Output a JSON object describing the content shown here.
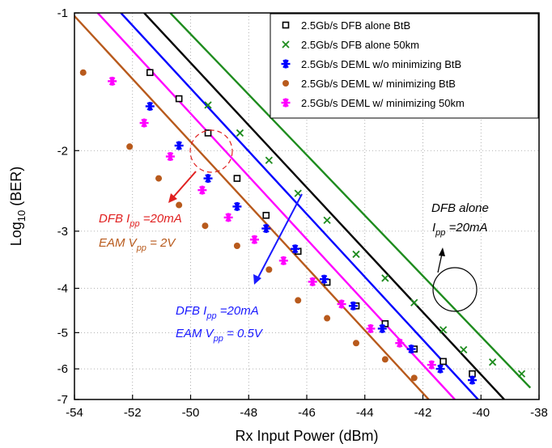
{
  "chart_data": {
    "type": "scatter",
    "xlabel": "Rx Input Power (dBm)",
    "ylabel_main": "Log",
    "ylabel_sub": "10",
    "ylabel_rest": " (BER)",
    "xlim": [
      -54,
      -38
    ],
    "ylim": [
      -7,
      -1
    ],
    "x_ticks": [
      -54,
      -52,
      -50,
      -48,
      -46,
      -44,
      -42,
      -40,
      -38
    ],
    "y_ticks": [
      -1,
      -2,
      -3,
      -4,
      -5,
      -6,
      -7
    ],
    "y_scale": "log-of-log (BER)",
    "grid": true,
    "legend_position": "top-right",
    "series": [
      {
        "name": "2.5Gb/s DFB alone BtB",
        "marker": "open-square",
        "color": "#000000",
        "points": [
          [
            -51.4,
            -1.35
          ],
          [
            -50.4,
            -1.54
          ],
          [
            -49.4,
            -1.83
          ],
          [
            -48.4,
            -2.3
          ],
          [
            -47.4,
            -2.77
          ],
          [
            -46.3,
            -3.32
          ],
          [
            -45.3,
            -3.88
          ],
          [
            -44.3,
            -4.37
          ],
          [
            -43.3,
            -4.78
          ],
          [
            -42.3,
            -5.43
          ],
          [
            -41.3,
            -5.78
          ],
          [
            -40.3,
            -6.15
          ]
        ],
        "fit": [
          [
            -51.6,
            -1.0
          ],
          [
            -39.2,
            -7.0
          ]
        ]
      },
      {
        "name": "2.5Gb/s DFB alone 50km",
        "marker": "x",
        "color": "#1e8c1e",
        "points": [
          [
            -49.4,
            -1.59
          ],
          [
            -48.3,
            -1.83
          ],
          [
            -47.3,
            -2.1
          ],
          [
            -46.3,
            -2.48
          ],
          [
            -45.3,
            -2.84
          ],
          [
            -44.3,
            -3.37
          ],
          [
            -43.3,
            -3.8
          ],
          [
            -42.3,
            -4.3
          ],
          [
            -41.3,
            -4.93
          ],
          [
            -40.6,
            -5.45
          ],
          [
            -39.6,
            -5.8
          ],
          [
            -38.6,
            -6.15
          ]
        ],
        "fit": [
          [
            -50.7,
            -1.0
          ],
          [
            -38.3,
            -6.6
          ]
        ]
      },
      {
        "name": "2.5Gb/s DEML w/o minimizing BtB",
        "marker": "asterisk",
        "color": "#0000ff",
        "points": [
          [
            -51.4,
            -1.6
          ],
          [
            -50.4,
            -1.95
          ],
          [
            -49.4,
            -2.3
          ],
          [
            -48.4,
            -2.65
          ],
          [
            -47.4,
            -2.96
          ],
          [
            -46.4,
            -3.28
          ],
          [
            -45.4,
            -3.82
          ],
          [
            -44.4,
            -4.37
          ],
          [
            -43.4,
            -4.9
          ],
          [
            -42.4,
            -5.43
          ],
          [
            -41.4,
            -6.0
          ],
          [
            -40.3,
            -6.35
          ]
        ],
        "fit": [
          [
            -52.4,
            -1.0
          ],
          [
            -40.1,
            -7.0
          ]
        ]
      },
      {
        "name": "2.5Gb/s DEML w/ minimizing BtB",
        "marker": "filled-circle",
        "color": "#b85a1c",
        "points": [
          [
            -53.7,
            -1.35
          ],
          [
            -52.1,
            -1.96
          ],
          [
            -51.1,
            -2.3
          ],
          [
            -50.4,
            -2.63
          ],
          [
            -49.5,
            -2.92
          ],
          [
            -48.4,
            -3.23
          ],
          [
            -47.3,
            -3.64
          ],
          [
            -46.3,
            -4.25
          ],
          [
            -45.3,
            -4.65
          ],
          [
            -44.3,
            -5.27
          ],
          [
            -43.3,
            -5.72
          ],
          [
            -42.3,
            -6.28
          ]
        ],
        "fit": [
          [
            -54.1,
            -1.0
          ],
          [
            -41.8,
            -7.0
          ]
        ]
      },
      {
        "name": "2.5Gb/s DEML w/ minimizing 50km",
        "marker": "asterisk",
        "color": "#ff00ff",
        "points": [
          [
            -52.7,
            -1.41
          ],
          [
            -51.6,
            -1.74
          ],
          [
            -50.7,
            -2.06
          ],
          [
            -49.6,
            -2.44
          ],
          [
            -48.7,
            -2.8
          ],
          [
            -47.8,
            -3.13
          ],
          [
            -46.8,
            -3.48
          ],
          [
            -45.8,
            -3.87
          ],
          [
            -44.8,
            -4.33
          ],
          [
            -43.8,
            -4.9
          ],
          [
            -42.8,
            -5.27
          ],
          [
            -41.7,
            -5.88
          ]
        ],
        "fit": [
          [
            -53.2,
            -1.0
          ],
          [
            -40.9,
            -7.0
          ]
        ]
      }
    ],
    "annotations": {
      "dfb_alone_title": "DFB alone",
      "dfb_alone_ipp_prefix": "I",
      "dfb_alone_ipp_sub": "pp",
      "dfb_alone_ipp_suffix": " =20mA",
      "red_line1_prefix": "DFB  I",
      "red_line1_sub": "pp",
      "red_line1_suffix": " =20mA",
      "red_line2_prefix": "EAM V",
      "red_line2_sub": "pp",
      "red_line2_suffix": " = 2V",
      "blue_line1_prefix": "DFB  I",
      "blue_line1_sub": "pp",
      "blue_line1_suffix": " =20mA",
      "blue_line2_prefix": "EAM V",
      "blue_line2_sub": "pp",
      "blue_line2_suffix": " = 0.5V",
      "red_color": "#e02020",
      "brown_color": "#b85a1c",
      "blue_color": "#1a1aff"
    }
  }
}
